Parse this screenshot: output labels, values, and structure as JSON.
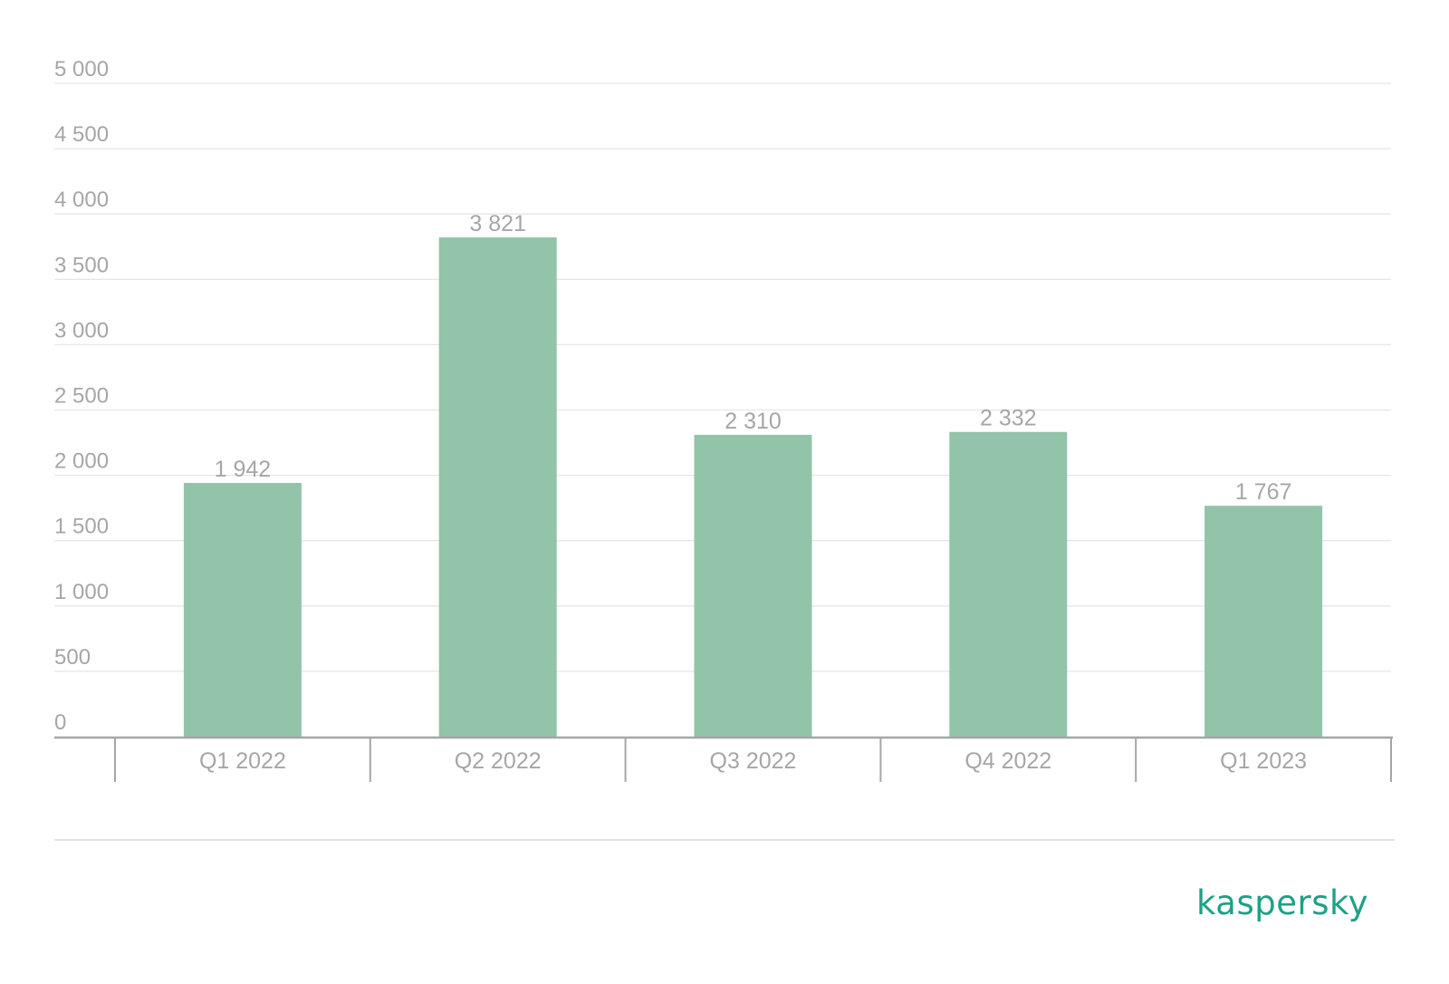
{
  "chart_data": {
    "type": "bar",
    "categories": [
      "Q1 2022",
      "Q2 2022",
      "Q3 2022",
      "Q4 2022",
      "Q1 2023"
    ],
    "values": [
      1942,
      3821,
      2310,
      2332,
      1767
    ],
    "data_labels": [
      "1 942",
      "3 821",
      "2 310",
      "2 332",
      "1 767"
    ],
    "ylim": [
      0,
      5000
    ],
    "yticks": [
      0,
      500,
      1000,
      1500,
      2000,
      2500,
      3000,
      3500,
      4000,
      4500,
      5000
    ],
    "ytick_labels": [
      "0",
      "500",
      "1 000",
      "1 500",
      "2 000",
      "2 500",
      "3 000",
      "3 500",
      "4 000",
      "4 500",
      "5 000"
    ],
    "grid": true,
    "bar_color": "#91c4a8",
    "text_color": "#a6a6a6",
    "grid_color": "#e6e6e6"
  },
  "brand": {
    "logo_text": "kaspersky",
    "color": "#1da186"
  }
}
